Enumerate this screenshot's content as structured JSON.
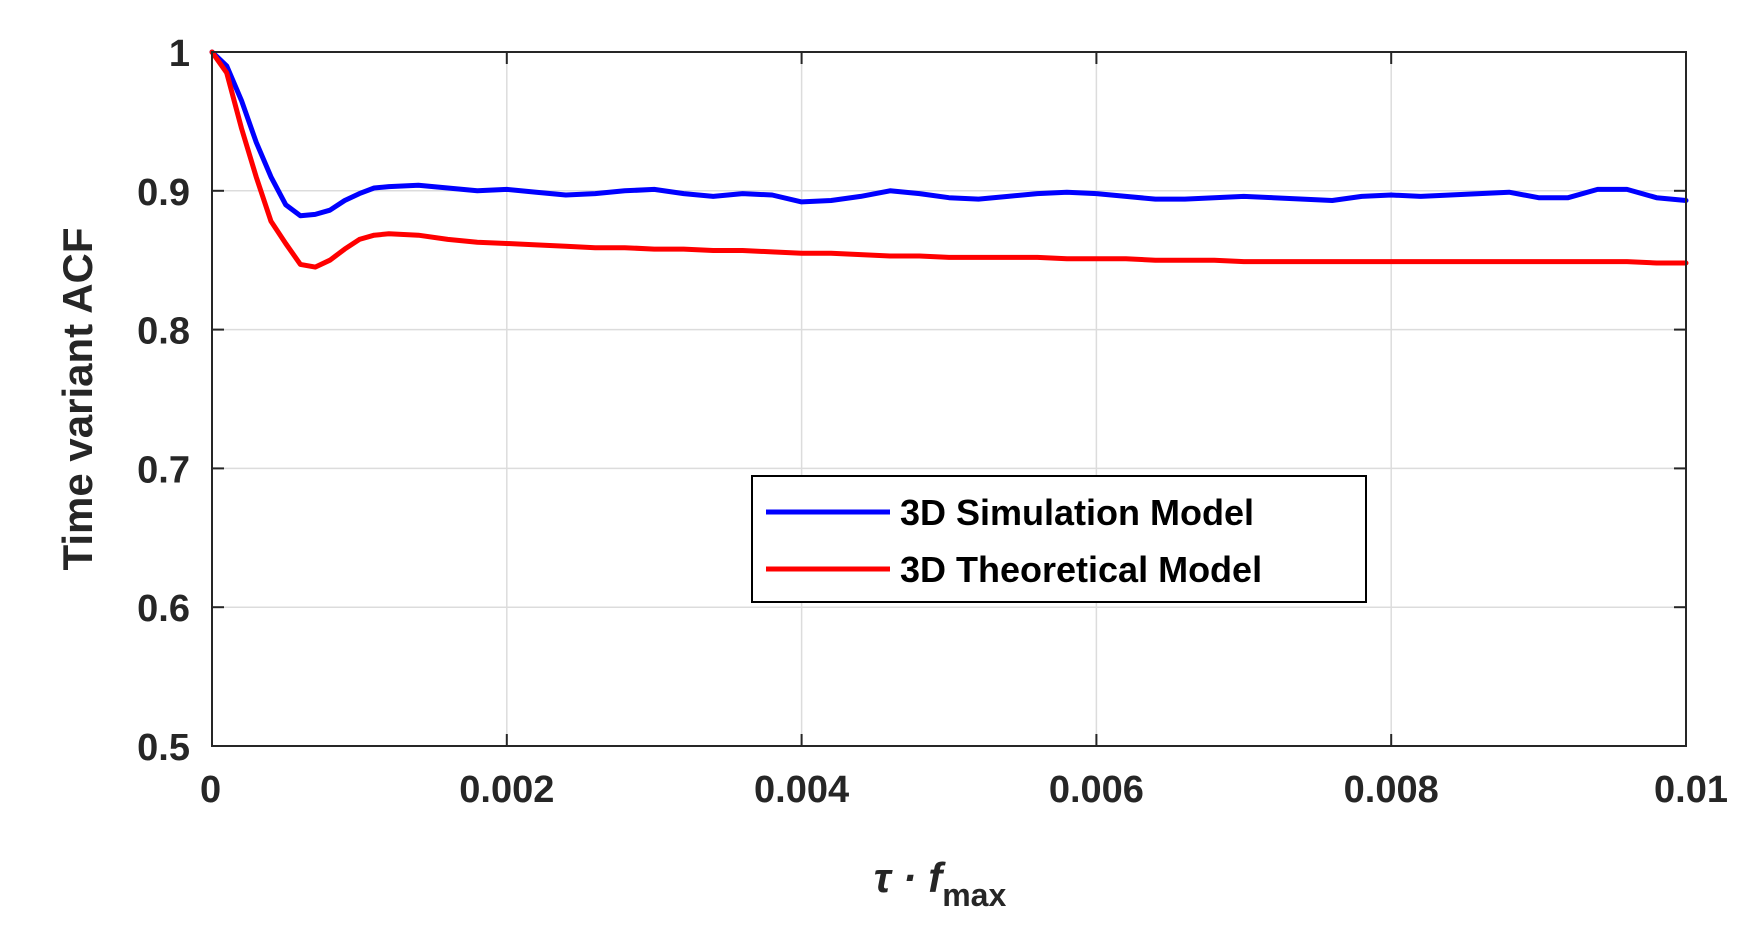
{
  "chart_data": {
    "type": "line",
    "title": "",
    "xlabel": "τ ·  f",
    "xlabel_sub": "max",
    "ylabel": "Time variant  ACF",
    "xlim": [
      0,
      0.01
    ],
    "ylim": [
      0.5,
      1
    ],
    "grid": true,
    "xticks": [
      0,
      0.002,
      0.004,
      0.006,
      0.008,
      0.01
    ],
    "xtick_labels": [
      "0",
      "0.002",
      "0.004",
      "0.006",
      "0.008",
      "0.01"
    ],
    "yticks": [
      0.5,
      0.6,
      0.7,
      0.8,
      0.9,
      1
    ],
    "ytick_labels": [
      "0.5",
      "0.6",
      "0.7",
      "0.8",
      "0.9",
      "1"
    ],
    "legend_position": "center-right",
    "series": [
      {
        "name": "3D Simulation Model",
        "color": "#0000ff",
        "x": [
          0,
          0.0001,
          0.0002,
          0.0003,
          0.0004,
          0.0005,
          0.0006,
          0.0007,
          0.0008,
          0.0009,
          0.001,
          0.0011,
          0.0012,
          0.0014,
          0.0016,
          0.0018,
          0.002,
          0.0022,
          0.0024,
          0.0026,
          0.0028,
          0.003,
          0.0032,
          0.0034,
          0.0036,
          0.0038,
          0.004,
          0.0042,
          0.0044,
          0.0046,
          0.0048,
          0.005,
          0.0052,
          0.0054,
          0.0056,
          0.0058,
          0.006,
          0.0062,
          0.0064,
          0.0066,
          0.0068,
          0.007,
          0.0072,
          0.0074,
          0.0076,
          0.0078,
          0.008,
          0.0082,
          0.0084,
          0.0086,
          0.0088,
          0.009,
          0.0092,
          0.0094,
          0.0096,
          0.0098,
          0.01
        ],
        "y": [
          1.0,
          0.99,
          0.965,
          0.935,
          0.91,
          0.89,
          0.882,
          0.883,
          0.886,
          0.893,
          0.898,
          0.902,
          0.903,
          0.904,
          0.902,
          0.9,
          0.901,
          0.899,
          0.897,
          0.898,
          0.9,
          0.901,
          0.898,
          0.896,
          0.898,
          0.897,
          0.892,
          0.893,
          0.896,
          0.9,
          0.898,
          0.895,
          0.894,
          0.896,
          0.898,
          0.899,
          0.898,
          0.896,
          0.894,
          0.894,
          0.895,
          0.896,
          0.895,
          0.894,
          0.893,
          0.896,
          0.897,
          0.896,
          0.897,
          0.898,
          0.899,
          0.895,
          0.895,
          0.901,
          0.901,
          0.895,
          0.893
        ]
      },
      {
        "name": "3D Theoretical Model",
        "color": "#ff0000",
        "x": [
          0,
          0.0001,
          0.0002,
          0.0003,
          0.0004,
          0.0005,
          0.0006,
          0.0007,
          0.0008,
          0.0009,
          0.001,
          0.0011,
          0.0012,
          0.0014,
          0.0016,
          0.0018,
          0.002,
          0.0022,
          0.0024,
          0.0026,
          0.0028,
          0.003,
          0.0032,
          0.0034,
          0.0036,
          0.0038,
          0.004,
          0.0042,
          0.0044,
          0.0046,
          0.0048,
          0.005,
          0.0052,
          0.0054,
          0.0056,
          0.0058,
          0.006,
          0.0062,
          0.0064,
          0.0066,
          0.0068,
          0.007,
          0.0072,
          0.0074,
          0.0076,
          0.0078,
          0.008,
          0.0082,
          0.0084,
          0.0086,
          0.0088,
          0.009,
          0.0092,
          0.0094,
          0.0096,
          0.0098,
          0.01
        ],
        "y": [
          1.0,
          0.985,
          0.945,
          0.91,
          0.878,
          0.862,
          0.847,
          0.845,
          0.85,
          0.858,
          0.865,
          0.868,
          0.869,
          0.868,
          0.865,
          0.863,
          0.862,
          0.861,
          0.86,
          0.859,
          0.859,
          0.858,
          0.858,
          0.857,
          0.857,
          0.856,
          0.855,
          0.855,
          0.854,
          0.853,
          0.853,
          0.852,
          0.852,
          0.852,
          0.852,
          0.851,
          0.851,
          0.851,
          0.85,
          0.85,
          0.85,
          0.849,
          0.849,
          0.849,
          0.849,
          0.849,
          0.849,
          0.849,
          0.849,
          0.849,
          0.849,
          0.849,
          0.849,
          0.849,
          0.849,
          0.848,
          0.848
        ]
      }
    ]
  }
}
